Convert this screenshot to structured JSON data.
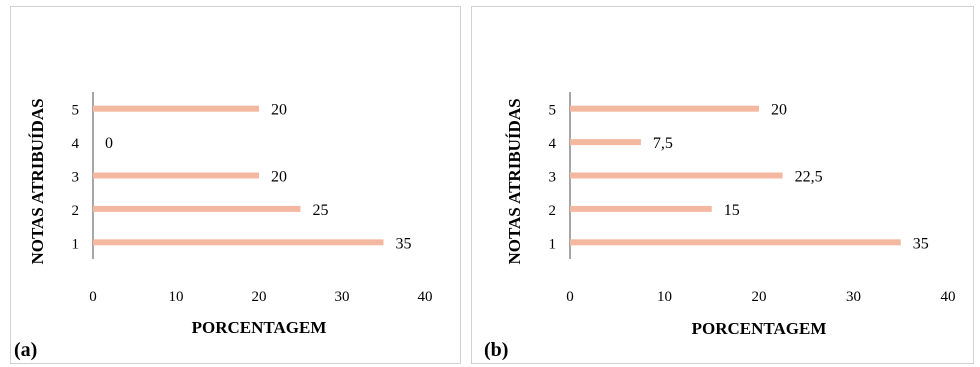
{
  "chart_data": [
    {
      "type": "bar",
      "orientation": "horizontal",
      "panel_label": "(a)",
      "categories": [
        "1",
        "2",
        "3",
        "4",
        "5"
      ],
      "values": [
        35,
        25,
        20,
        0,
        20
      ],
      "data_labels": [
        "35",
        "25",
        "20",
        "0",
        "20"
      ],
      "xlabel": "PORCENTAGEM",
      "ylabel": "NOTAS ATRIBUÍDAS",
      "xlim": [
        0,
        40
      ],
      "xticks": [
        "0",
        "10",
        "20",
        "30",
        "40"
      ],
      "grid": false,
      "bar_color": "#f4b8a0"
    },
    {
      "type": "bar",
      "orientation": "horizontal",
      "panel_label": "(b)",
      "categories": [
        "1",
        "2",
        "3",
        "4",
        "5"
      ],
      "values": [
        35,
        15,
        22.5,
        7.5,
        20
      ],
      "data_labels": [
        "35",
        "15",
        "22,5",
        "7,5",
        "20"
      ],
      "xlabel": "PORCENTAGEM",
      "ylabel": "NOTAS ATRIBUÍDAS",
      "xlim": [
        0,
        40
      ],
      "xticks": [
        "0",
        "10",
        "20",
        "30",
        "40"
      ],
      "grid": false,
      "bar_color": "#f4b8a0"
    }
  ]
}
